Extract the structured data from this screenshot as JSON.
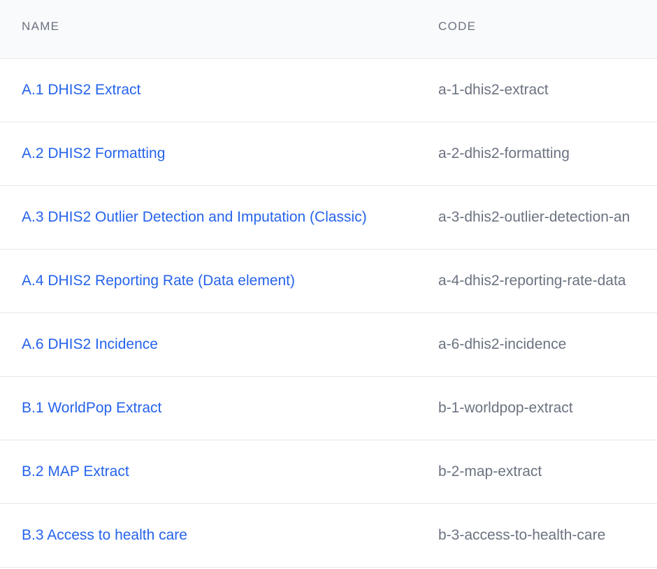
{
  "table": {
    "columns": [
      "NAME",
      "CODE"
    ],
    "rows": [
      [
        "A.1 DHIS2 Extract",
        "a-1-dhis2-extract"
      ],
      [
        "A.2 DHIS2 Formatting",
        "a-2-dhis2-formatting"
      ],
      [
        "A.3 DHIS2 Outlier Detection and Imputation (Classic)",
        "a-3-dhis2-outlier-detection-an"
      ],
      [
        "A.4 DHIS2 Reporting Rate (Data element)",
        "a-4-dhis2-reporting-rate-data"
      ],
      [
        "A.6 DHIS2 Incidence",
        "a-6-dhis2-incidence"
      ],
      [
        "B.1 WorldPop Extract",
        "b-1-worldpop-extract"
      ],
      [
        "B.2 MAP Extract",
        "b-2-map-extract"
      ],
      [
        "B.3 Access to health care",
        "b-3-access-to-health-care"
      ]
    ]
  }
}
